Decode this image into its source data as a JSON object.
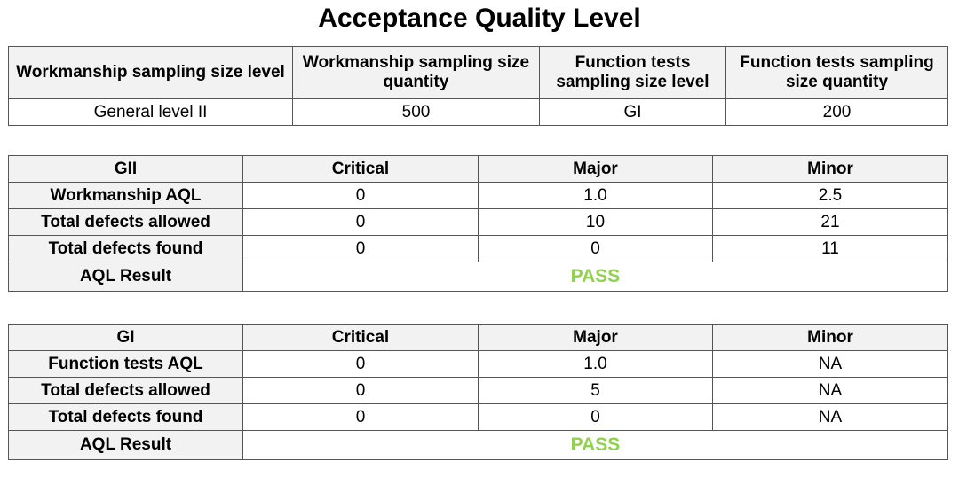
{
  "title": "Acceptance Quality Level",
  "sampling": {
    "header": [
      "Workmanship sampling size level",
      "Workmanship sampling size quantity",
      "Function tests sampling size level",
      "Function tests sampling size quantity"
    ],
    "row": [
      "General level II",
      "500",
      "GI",
      "200"
    ]
  },
  "workmanship": {
    "header": [
      "GII",
      "Critical",
      "Major",
      "Minor"
    ],
    "rows": [
      [
        "Workmanship AQL",
        "0",
        "1.0",
        "2.5"
      ],
      [
        "Total defects allowed",
        "0",
        "10",
        "21"
      ],
      [
        "Total defects found",
        "0",
        "0",
        "11"
      ]
    ],
    "result_label": "AQL Result",
    "result": "PASS"
  },
  "function_tests": {
    "header": [
      "GI",
      "Critical",
      "Major",
      "Minor"
    ],
    "rows": [
      [
        "Function tests AQL",
        "0",
        "1.0",
        "NA"
      ],
      [
        "Total defects allowed",
        "0",
        "5",
        "NA"
      ],
      [
        "Total defects found",
        "0",
        "0",
        "NA"
      ]
    ],
    "result_label": "AQL Result",
    "result": "PASS"
  }
}
